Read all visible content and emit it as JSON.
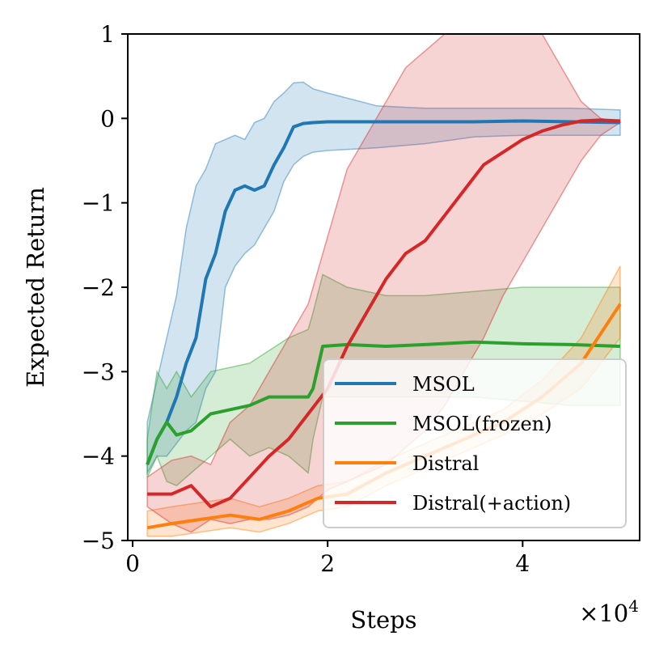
{
  "chart_data": {
    "type": "line",
    "title": "",
    "xlabel": "Steps",
    "ylabel": "Expected Return",
    "x_scale_label": "×10",
    "x_scale_exponent": "4",
    "xlim": [
      -0.05,
      5.2
    ],
    "ylim": [
      -5,
      1
    ],
    "xticks": [
      0,
      2,
      4
    ],
    "yticks": [
      -5,
      -4,
      -3,
      -2,
      -1,
      0,
      1
    ],
    "xtick_labels": [
      "0",
      "2",
      "4"
    ],
    "ytick_labels": [
      "−5",
      "−4",
      "−3",
      "−2",
      "−1",
      "0",
      "1"
    ],
    "legend_position": "bottom-right",
    "series": [
      {
        "name": "MSOL",
        "color": "#1f77b4",
        "x": [
          0.15,
          0.25,
          0.35,
          0.45,
          0.55,
          0.65,
          0.75,
          0.85,
          0.95,
          1.05,
          1.15,
          1.25,
          1.35,
          1.45,
          1.55,
          1.65,
          1.75,
          1.85,
          2.0,
          2.5,
          3.0,
          3.5,
          4.0,
          4.5,
          5.0
        ],
        "mean": [
          -4.1,
          -3.8,
          -3.6,
          -3.3,
          -2.9,
          -2.6,
          -1.9,
          -1.6,
          -1.1,
          -0.85,
          -0.8,
          -0.85,
          -0.8,
          -0.55,
          -0.35,
          -0.1,
          -0.06,
          -0.05,
          -0.04,
          -0.04,
          -0.04,
          -0.04,
          -0.03,
          -0.04,
          -0.05
        ],
        "lower": [
          -4.2,
          -4.0,
          -4.0,
          -3.85,
          -3.7,
          -3.6,
          -3.2,
          -3.0,
          -2.0,
          -1.75,
          -1.6,
          -1.5,
          -1.3,
          -1.1,
          -0.75,
          -0.55,
          -0.45,
          -0.4,
          -0.38,
          -0.35,
          -0.3,
          -0.22,
          -0.2,
          -0.2,
          -0.2
        ],
        "upper": [
          -3.6,
          -3.1,
          -2.6,
          -2.1,
          -1.3,
          -0.8,
          -0.6,
          -0.3,
          -0.25,
          -0.2,
          -0.25,
          -0.05,
          0.0,
          0.2,
          0.3,
          0.42,
          0.43,
          0.35,
          0.3,
          0.15,
          0.12,
          0.12,
          0.12,
          0.12,
          0.1
        ]
      },
      {
        "name": "MSOL(frozen)",
        "color": "#2ca02c",
        "x": [
          0.15,
          0.25,
          0.35,
          0.45,
          0.6,
          0.8,
          1.0,
          1.2,
          1.4,
          1.6,
          1.8,
          1.85,
          1.95,
          2.2,
          2.6,
          3.0,
          3.5,
          4.0,
          4.5,
          5.0
        ],
        "mean": [
          -4.1,
          -3.8,
          -3.6,
          -3.75,
          -3.7,
          -3.5,
          -3.45,
          -3.4,
          -3.3,
          -3.3,
          -3.3,
          -3.2,
          -2.7,
          -2.68,
          -2.7,
          -2.68,
          -2.65,
          -2.67,
          -2.68,
          -2.7
        ],
        "lower": [
          -4.25,
          -4.0,
          -4.3,
          -4.35,
          -4.2,
          -4.0,
          -3.8,
          -4.0,
          -3.9,
          -4.0,
          -4.2,
          -3.8,
          -3.3,
          -3.3,
          -3.3,
          -3.3,
          -3.3,
          -3.35,
          -3.4,
          -3.4
        ],
        "upper": [
          -3.8,
          -3.0,
          -3.2,
          -3.0,
          -3.3,
          -3.0,
          -2.95,
          -2.9,
          -2.75,
          -2.6,
          -2.5,
          -2.3,
          -1.85,
          -2.0,
          -2.1,
          -2.1,
          -2.05,
          -2.0,
          -2.0,
          -2.0
        ]
      },
      {
        "name": "Distral",
        "color": "#ff7f0e",
        "x": [
          0.15,
          0.4,
          0.7,
          1.0,
          1.3,
          1.6,
          1.9,
          2.2,
          2.6,
          3.0,
          3.4,
          3.8,
          4.2,
          4.6,
          5.0
        ],
        "mean": [
          -4.85,
          -4.8,
          -4.75,
          -4.7,
          -4.75,
          -4.65,
          -4.5,
          -4.45,
          -4.2,
          -4.0,
          -3.8,
          -3.6,
          -3.3,
          -2.9,
          -2.2
        ],
        "lower": [
          -4.95,
          -4.95,
          -4.9,
          -4.85,
          -4.9,
          -4.8,
          -4.65,
          -4.6,
          -4.35,
          -4.15,
          -3.95,
          -3.75,
          -3.5,
          -3.2,
          -2.6
        ],
        "upper": [
          -4.65,
          -4.6,
          -4.55,
          -4.5,
          -4.6,
          -4.5,
          -4.35,
          -4.3,
          -4.05,
          -3.85,
          -3.65,
          -3.45,
          -3.1,
          -2.6,
          -1.75
        ]
      },
      {
        "name": "Distral(+action)",
        "color": "#d62728",
        "x": [
          0.15,
          0.4,
          0.6,
          0.8,
          1.0,
          1.2,
          1.4,
          1.6,
          1.8,
          2.0,
          2.2,
          2.4,
          2.6,
          2.8,
          3.0,
          3.2,
          3.4,
          3.6,
          3.8,
          4.0,
          4.2,
          4.4,
          4.6,
          4.8,
          5.0
        ],
        "mean": [
          -4.45,
          -4.45,
          -4.35,
          -4.6,
          -4.5,
          -4.25,
          -4.0,
          -3.8,
          -3.5,
          -3.2,
          -2.7,
          -2.3,
          -1.9,
          -1.6,
          -1.45,
          -1.15,
          -0.85,
          -0.55,
          -0.4,
          -0.25,
          -0.15,
          -0.08,
          -0.03,
          -0.02,
          -0.03
        ],
        "lower": [
          -4.6,
          -4.8,
          -4.9,
          -4.75,
          -4.8,
          -4.75,
          -4.75,
          -4.7,
          -4.6,
          -4.4,
          -4.3,
          -4.2,
          -4.1,
          -3.9,
          -3.7,
          -3.4,
          -3.0,
          -2.6,
          -2.1,
          -1.7,
          -1.3,
          -0.9,
          -0.5,
          -0.2,
          -0.05
        ],
        "upper": [
          -4.25,
          -4.05,
          -4.0,
          -4.1,
          -3.6,
          -3.4,
          -3.0,
          -2.6,
          -2.2,
          -1.4,
          -0.6,
          -0.2,
          0.2,
          0.6,
          0.8,
          1.0,
          1.0,
          1.0,
          1.0,
          1.0,
          1.0,
          0.6,
          0.2,
          0.0,
          -0.05
        ]
      }
    ]
  }
}
